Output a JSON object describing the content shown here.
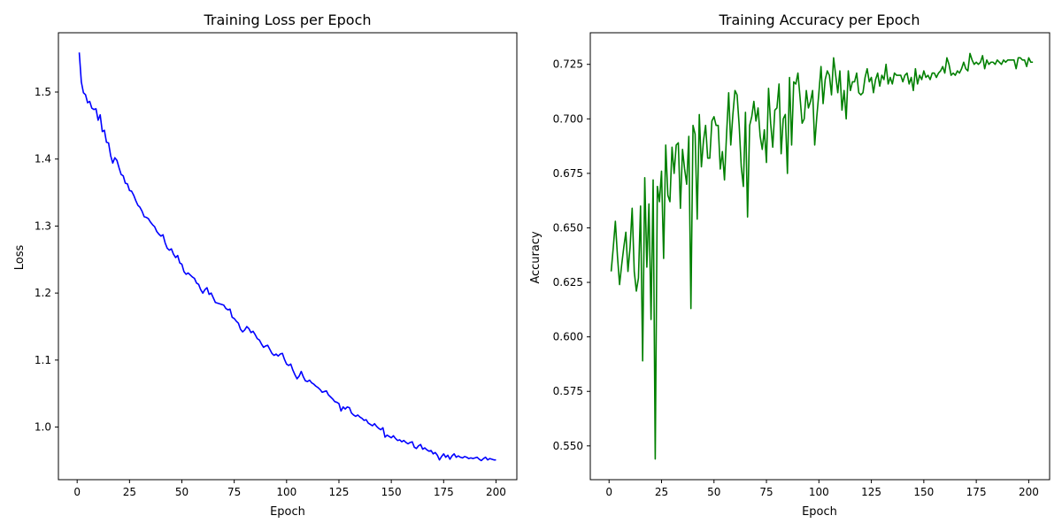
{
  "chart_data": [
    {
      "type": "line",
      "title": "Training Loss per Epoch",
      "xlabel": "Epoch",
      "ylabel": "Loss",
      "xlim": [
        -8.95,
        209.95
      ],
      "ylim": [
        0.9215,
        1.5885
      ],
      "x_ticks": [
        0,
        25,
        50,
        75,
        100,
        125,
        150,
        175,
        200
      ],
      "y_ticks": [
        1.0,
        1.1,
        1.2,
        1.3,
        1.4,
        1.5
      ],
      "x_tick_labels": [
        "0",
        "25",
        "50",
        "75",
        "100",
        "125",
        "150",
        "175",
        "200"
      ],
      "y_tick_labels": [
        "1.0",
        "1.1",
        "1.2",
        "1.3",
        "1.4",
        "1.5"
      ],
      "grid": false,
      "color": "#0000ff",
      "series": [
        {
          "x_start": 1,
          "x_step": 1,
          "values": [
            1.559,
            1.515,
            1.499,
            1.496,
            1.484,
            1.486,
            1.476,
            1.474,
            1.475,
            1.458,
            1.466,
            1.441,
            1.443,
            1.425,
            1.424,
            1.405,
            1.394,
            1.402,
            1.398,
            1.387,
            1.377,
            1.375,
            1.364,
            1.363,
            1.353,
            1.352,
            1.346,
            1.338,
            1.331,
            1.328,
            1.322,
            1.314,
            1.313,
            1.311,
            1.306,
            1.302,
            1.299,
            1.292,
            1.288,
            1.285,
            1.287,
            1.275,
            1.267,
            1.264,
            1.266,
            1.258,
            1.253,
            1.256,
            1.245,
            1.243,
            1.232,
            1.228,
            1.23,
            1.227,
            1.224,
            1.222,
            1.215,
            1.213,
            1.205,
            1.2,
            1.205,
            1.208,
            1.198,
            1.2,
            1.193,
            1.186,
            1.185,
            1.184,
            1.183,
            1.182,
            1.177,
            1.175,
            1.176,
            1.164,
            1.162,
            1.158,
            1.155,
            1.146,
            1.142,
            1.145,
            1.15,
            1.147,
            1.141,
            1.143,
            1.138,
            1.132,
            1.13,
            1.124,
            1.119,
            1.121,
            1.122,
            1.116,
            1.11,
            1.107,
            1.109,
            1.106,
            1.109,
            1.11,
            1.101,
            1.094,
            1.092,
            1.094,
            1.085,
            1.078,
            1.072,
            1.076,
            1.083,
            1.075,
            1.069,
            1.068,
            1.07,
            1.066,
            1.064,
            1.061,
            1.059,
            1.056,
            1.052,
            1.053,
            1.054,
            1.048,
            1.045,
            1.042,
            1.038,
            1.037,
            1.035,
            1.024,
            1.03,
            1.027,
            1.03,
            1.029,
            1.021,
            1.018,
            1.016,
            1.018,
            1.015,
            1.013,
            1.01,
            1.011,
            1.006,
            1.004,
            1.002,
            1.005,
            1.001,
            0.998,
            0.996,
            0.999,
            0.985,
            0.988,
            0.986,
            0.984,
            0.987,
            0.983,
            0.98,
            0.981,
            0.978,
            0.98,
            0.977,
            0.975,
            0.977,
            0.978,
            0.97,
            0.968,
            0.972,
            0.974,
            0.967,
            0.969,
            0.966,
            0.964,
            0.965,
            0.96,
            0.962,
            0.958,
            0.951,
            0.956,
            0.96,
            0.955,
            0.958,
            0.952,
            0.957,
            0.96,
            0.955,
            0.957,
            0.955,
            0.954,
            0.956,
            0.955,
            0.953,
            0.954,
            0.953,
            0.954,
            0.955,
            0.952,
            0.95,
            0.953,
            0.955,
            0.951,
            0.953,
            0.952,
            0.951,
            0.951
          ]
        }
      ]
    },
    {
      "type": "line",
      "title": "Training Accuracy per Epoch",
      "xlabel": "Epoch",
      "ylabel": "Accuracy",
      "xlim": [
        -8.95,
        209.95
      ],
      "ylim": [
        0.5345,
        0.7395
      ],
      "x_ticks": [
        0,
        25,
        50,
        75,
        100,
        125,
        150,
        175,
        200
      ],
      "y_ticks": [
        0.55,
        0.575,
        0.6,
        0.625,
        0.65,
        0.675,
        0.7,
        0.725
      ],
      "x_tick_labels": [
        "0",
        "25",
        "50",
        "75",
        "100",
        "125",
        "150",
        "175",
        "200"
      ],
      "y_tick_labels": [
        "0.550",
        "0.575",
        "0.600",
        "0.625",
        "0.650",
        "0.675",
        "0.700",
        "0.725"
      ],
      "grid": false,
      "color": "#008000",
      "series": [
        {
          "x_start": 1,
          "x_step": 1,
          "values": [
            0.63,
            0.641,
            0.653,
            0.637,
            0.624,
            0.633,
            0.641,
            0.648,
            0.63,
            0.641,
            0.659,
            0.63,
            0.621,
            0.627,
            0.66,
            0.589,
            0.673,
            0.632,
            0.661,
            0.608,
            0.672,
            0.544,
            0.669,
            0.662,
            0.676,
            0.636,
            0.688,
            0.665,
            0.662,
            0.687,
            0.675,
            0.688,
            0.689,
            0.659,
            0.686,
            0.677,
            0.67,
            0.692,
            0.613,
            0.697,
            0.693,
            0.654,
            0.702,
            0.678,
            0.69,
            0.697,
            0.682,
            0.682,
            0.699,
            0.701,
            0.697,
            0.697,
            0.677,
            0.685,
            0.672,
            0.693,
            0.712,
            0.688,
            0.702,
            0.713,
            0.711,
            0.697,
            0.678,
            0.669,
            0.703,
            0.655,
            0.697,
            0.701,
            0.708,
            0.699,
            0.705,
            0.692,
            0.686,
            0.695,
            0.68,
            0.714,
            0.698,
            0.687,
            0.704,
            0.705,
            0.716,
            0.684,
            0.7,
            0.702,
            0.675,
            0.719,
            0.688,
            0.717,
            0.716,
            0.721,
            0.71,
            0.698,
            0.7,
            0.713,
            0.705,
            0.708,
            0.713,
            0.688,
            0.701,
            0.712,
            0.724,
            0.707,
            0.718,
            0.722,
            0.72,
            0.711,
            0.728,
            0.72,
            0.712,
            0.722,
            0.704,
            0.713,
            0.7,
            0.722,
            0.713,
            0.717,
            0.717,
            0.721,
            0.712,
            0.711,
            0.712,
            0.719,
            0.723,
            0.717,
            0.719,
            0.712,
            0.718,
            0.721,
            0.715,
            0.72,
            0.718,
            0.725,
            0.716,
            0.719,
            0.716,
            0.721,
            0.72,
            0.72,
            0.72,
            0.717,
            0.72,
            0.721,
            0.716,
            0.719,
            0.713,
            0.723,
            0.716,
            0.72,
            0.718,
            0.722,
            0.719,
            0.72,
            0.718,
            0.721,
            0.721,
            0.719,
            0.721,
            0.722,
            0.724,
            0.721,
            0.728,
            0.725,
            0.72,
            0.721,
            0.72,
            0.722,
            0.721,
            0.723,
            0.726,
            0.723,
            0.722,
            0.73,
            0.727,
            0.725,
            0.726,
            0.725,
            0.726,
            0.729,
            0.723,
            0.727,
            0.725,
            0.726,
            0.726,
            0.725,
            0.727,
            0.726,
            0.725,
            0.727,
            0.726,
            0.727,
            0.727,
            0.727,
            0.727,
            0.723,
            0.728,
            0.728,
            0.727,
            0.727,
            0.724,
            0.728,
            0.726,
            0.726
          ]
        }
      ]
    }
  ]
}
